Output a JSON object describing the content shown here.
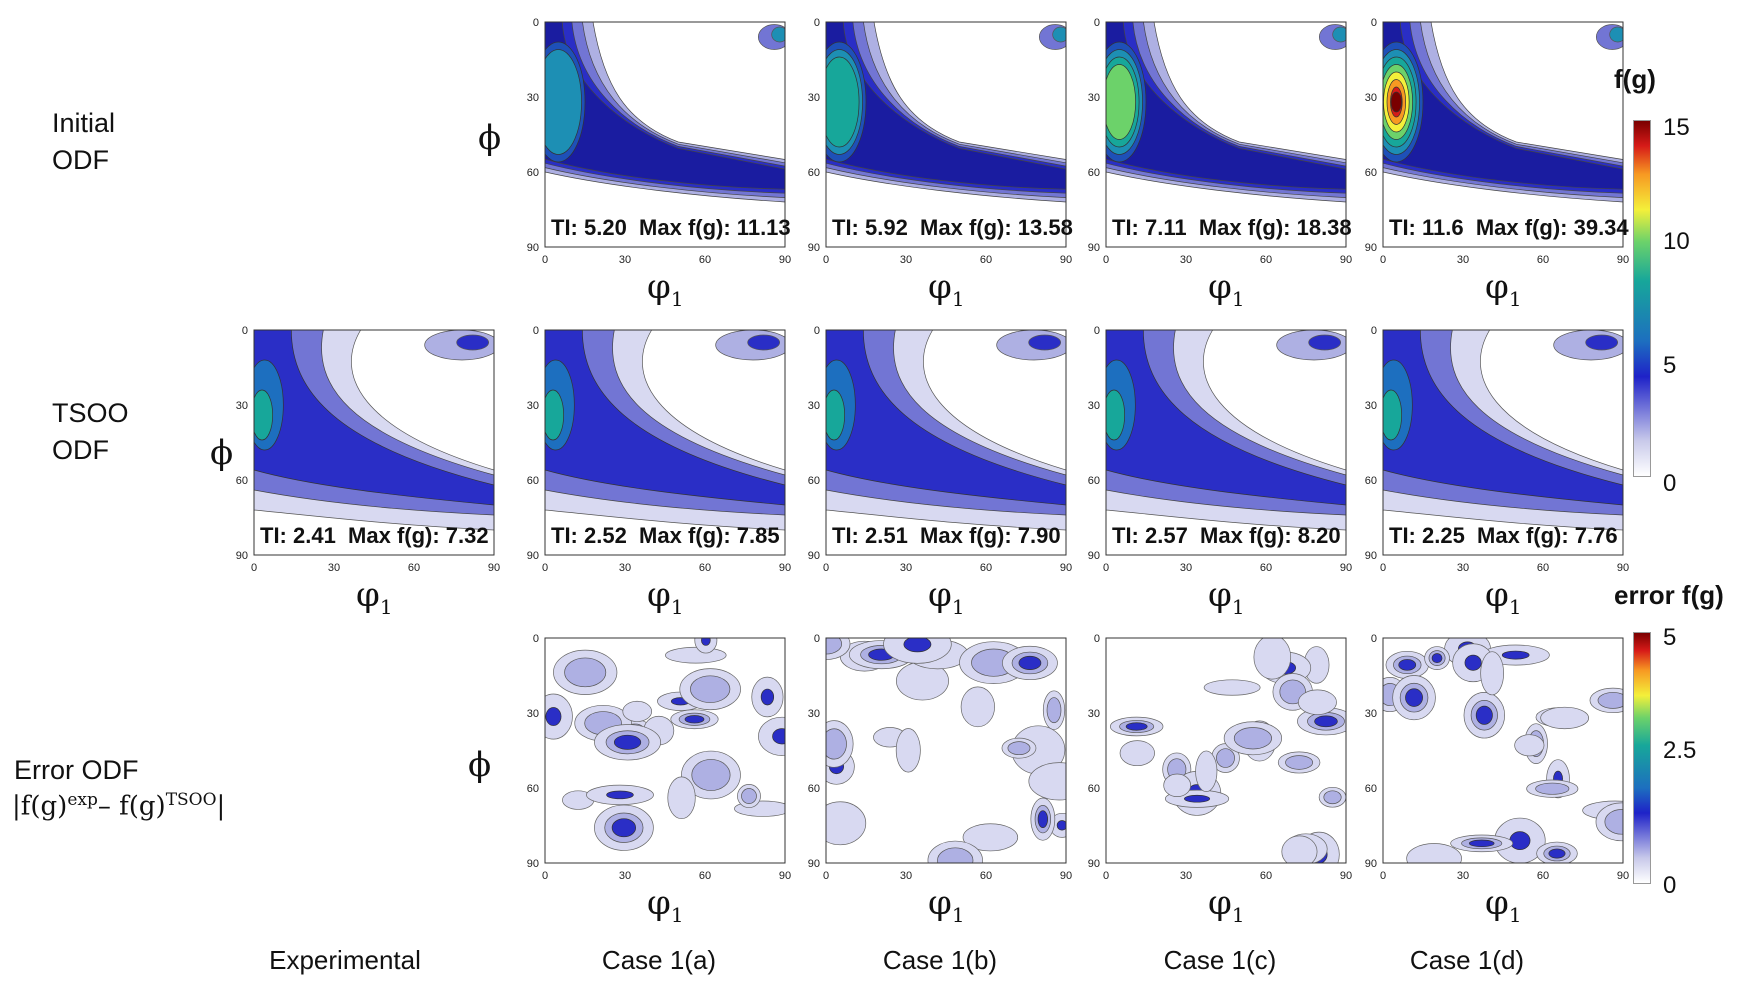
{
  "rows": [
    {
      "title": "Initial",
      "subtitle": "ODF"
    },
    {
      "title": "TSOO",
      "subtitle": "ODF"
    },
    {
      "title": "Error ODF"
    }
  ],
  "error_formula": {
    "f": "f(g)",
    "sup_exp": "exp",
    "dash": "– ",
    "sup_tsoo": "TSOO"
  },
  "columns": [
    "Experimental",
    "Case 1(a)",
    "Case 1(b)",
    "Case 1(c)",
    "Case 1(d)"
  ],
  "axes": {
    "x_symbol": "φ",
    "x_sub": "1",
    "y_symbol": "ϕ",
    "ticks": [
      "0",
      "30",
      "60",
      "90"
    ]
  },
  "colorbars": [
    {
      "title": "f(g)",
      "ticks": [
        "15",
        "10",
        "5",
        "0"
      ]
    },
    {
      "title": "error f(g)",
      "ticks": [
        "5",
        "2.5",
        "0"
      ]
    }
  ],
  "chart_data": [
    {
      "type": "contour",
      "row": "Initial ODF",
      "case": "Case 1(a)",
      "TI_label": "TI: 5.20",
      "max_label": "Max f(g): 11.13",
      "TI": 5.2,
      "max_fg": 11.13,
      "xlabel": "φ1",
      "ylabel": "ϕ",
      "xlim": [
        0,
        90
      ],
      "ylim": [
        0,
        90
      ],
      "zlim": [
        0,
        15
      ]
    },
    {
      "type": "contour",
      "row": "Initial ODF",
      "case": "Case 1(b)",
      "TI_label": "TI: 5.92",
      "max_label": "Max f(g): 13.58",
      "TI": 5.92,
      "max_fg": 13.58,
      "xlabel": "φ1",
      "ylabel": "ϕ",
      "xlim": [
        0,
        90
      ],
      "ylim": [
        0,
        90
      ],
      "zlim": [
        0,
        15
      ]
    },
    {
      "type": "contour",
      "row": "Initial ODF",
      "case": "Case 1(c)",
      "TI_label": "TI: 7.11",
      "max_label": "Max f(g): 18.38",
      "TI": 7.11,
      "max_fg": 18.38,
      "xlabel": "φ1",
      "ylabel": "ϕ",
      "xlim": [
        0,
        90
      ],
      "ylim": [
        0,
        90
      ],
      "zlim": [
        0,
        15
      ]
    },
    {
      "type": "contour",
      "row": "Initial ODF",
      "case": "Case 1(d)",
      "TI_label": "TI: 11.6",
      "max_label": "Max f(g): 39.34",
      "TI": 11.6,
      "max_fg": 39.34,
      "xlabel": "φ1",
      "ylabel": "ϕ",
      "xlim": [
        0,
        90
      ],
      "ylim": [
        0,
        90
      ],
      "zlim": [
        0,
        15
      ]
    },
    {
      "type": "contour",
      "row": "TSOO ODF",
      "case": "Experimental",
      "TI_label": "TI: 2.41",
      "max_label": "Max f(g): 7.32",
      "TI": 2.41,
      "max_fg": 7.32,
      "xlabel": "φ1",
      "ylabel": "ϕ",
      "xlim": [
        0,
        90
      ],
      "ylim": [
        0,
        90
      ],
      "zlim": [
        0,
        15
      ]
    },
    {
      "type": "contour",
      "row": "TSOO ODF",
      "case": "Case 1(a)",
      "TI_label": "TI: 2.52",
      "max_label": "Max f(g): 7.85",
      "TI": 2.52,
      "max_fg": 7.85,
      "xlabel": "φ1",
      "ylabel": "ϕ",
      "xlim": [
        0,
        90
      ],
      "ylim": [
        0,
        90
      ],
      "zlim": [
        0,
        15
      ]
    },
    {
      "type": "contour",
      "row": "TSOO ODF",
      "case": "Case 1(b)",
      "TI_label": "TI: 2.51",
      "max_label": "Max f(g): 7.90",
      "TI": 2.51,
      "max_fg": 7.9,
      "xlabel": "φ1",
      "ylabel": "ϕ",
      "xlim": [
        0,
        90
      ],
      "ylim": [
        0,
        90
      ],
      "zlim": [
        0,
        15
      ]
    },
    {
      "type": "contour",
      "row": "TSOO ODF",
      "case": "Case 1(c)",
      "TI_label": "TI: 2.57",
      "max_label": "Max f(g): 8.20",
      "TI": 2.57,
      "max_fg": 8.2,
      "xlabel": "φ1",
      "ylabel": "ϕ",
      "xlim": [
        0,
        90
      ],
      "ylim": [
        0,
        90
      ],
      "zlim": [
        0,
        15
      ]
    },
    {
      "type": "contour",
      "row": "TSOO ODF",
      "case": "Case 1(d)",
      "TI_label": "TI: 2.25",
      "max_label": "Max f(g): 7.76",
      "TI": 2.25,
      "max_fg": 7.76,
      "xlabel": "φ1",
      "ylabel": "ϕ",
      "xlim": [
        0,
        90
      ],
      "ylim": [
        0,
        90
      ],
      "zlim": [
        0,
        15
      ]
    },
    {
      "type": "contour",
      "row": "Error ODF",
      "case": "Case 1(a)",
      "xlabel": "φ1",
      "ylabel": "ϕ",
      "xlim": [
        0,
        90
      ],
      "ylim": [
        0,
        90
      ],
      "zlim": [
        0,
        5
      ]
    },
    {
      "type": "contour",
      "row": "Error ODF",
      "case": "Case 1(b)",
      "xlabel": "φ1",
      "ylabel": "ϕ",
      "xlim": [
        0,
        90
      ],
      "ylim": [
        0,
        90
      ],
      "zlim": [
        0,
        5
      ]
    },
    {
      "type": "contour",
      "row": "Error ODF",
      "case": "Case 1(c)",
      "xlabel": "φ1",
      "ylabel": "ϕ",
      "xlim": [
        0,
        90
      ],
      "ylim": [
        0,
        90
      ],
      "zlim": [
        0,
        5
      ]
    },
    {
      "type": "contour",
      "row": "Error ODF",
      "case": "Case 1(d)",
      "xlabel": "φ1",
      "ylabel": "ϕ",
      "xlim": [
        0,
        90
      ],
      "ylim": [
        0,
        90
      ],
      "zlim": [
        0,
        5
      ]
    }
  ]
}
